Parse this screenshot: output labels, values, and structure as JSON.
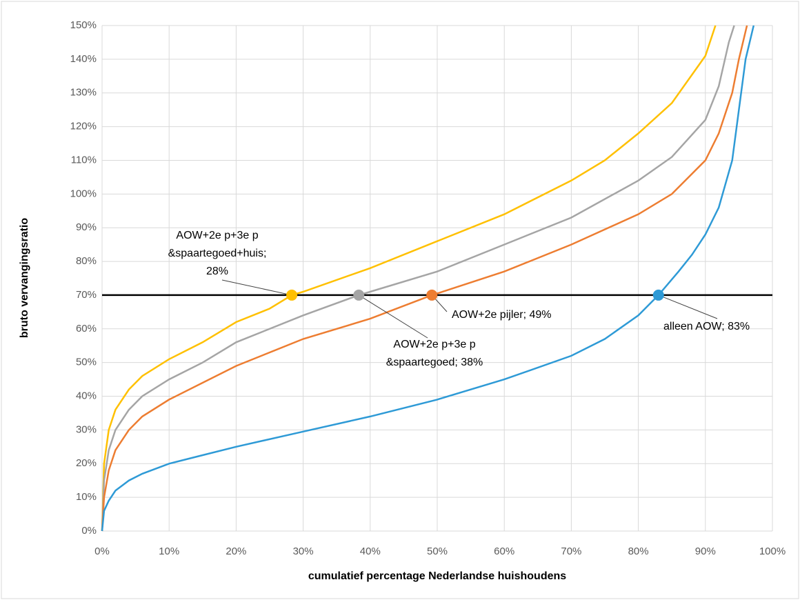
{
  "chart_data": {
    "type": "line",
    "x_label": "cumulatief percentage Nederlandse huishoudens",
    "y_label": "bruto vervangingsratio",
    "xlim": [
      0,
      100
    ],
    "ylim": [
      0,
      150
    ],
    "xticks": [
      {
        "value": 0,
        "label": "0%"
      },
      {
        "value": 10,
        "label": "10%"
      },
      {
        "value": 20,
        "label": "20%"
      },
      {
        "value": 30,
        "label": "30%"
      },
      {
        "value": 40,
        "label": "40%"
      },
      {
        "value": 50,
        "label": "50%"
      },
      {
        "value": 60,
        "label": "60%"
      },
      {
        "value": 70,
        "label": "70%"
      },
      {
        "value": 80,
        "label": "80%"
      },
      {
        "value": 90,
        "label": "90%"
      },
      {
        "value": 100,
        "label": "100%"
      }
    ],
    "yticks": [
      {
        "value": 0,
        "label": "0%"
      },
      {
        "value": 10,
        "label": "10%"
      },
      {
        "value": 20,
        "label": "20%"
      },
      {
        "value": 30,
        "label": "30%"
      },
      {
        "value": 40,
        "label": "40%"
      },
      {
        "value": 50,
        "label": "50%"
      },
      {
        "value": 60,
        "label": "60%"
      },
      {
        "value": 70,
        "label": "70%"
      },
      {
        "value": 80,
        "label": "80%"
      },
      {
        "value": 90,
        "label": "90%"
      },
      {
        "value": 100,
        "label": "100%"
      },
      {
        "value": 110,
        "label": "110%"
      },
      {
        "value": 120,
        "label": "120%"
      },
      {
        "value": 130,
        "label": "130%"
      },
      {
        "value": 140,
        "label": "140%"
      },
      {
        "value": 150,
        "label": "150%"
      }
    ],
    "grid": true,
    "reference_line": {
      "y": 70,
      "color": "#000000"
    },
    "series": [
      {
        "color": "#ffc000",
        "x": [
          0,
          0.3,
          1,
          2,
          4,
          6,
          10,
          15,
          20,
          25,
          28.3,
          30,
          40,
          50,
          60,
          70,
          75,
          80,
          85,
          90,
          91.5
        ],
        "values": [
          0,
          20,
          30,
          36,
          42,
          46,
          51,
          56,
          62,
          66,
          70,
          71,
          78,
          86,
          94,
          104,
          110,
          118,
          127,
          141,
          150
        ]
      },
      {
        "color": "#a5a5a5",
        "x": [
          0,
          0.3,
          1,
          2,
          4,
          6,
          10,
          15,
          20,
          30,
          38.3,
          40,
          50,
          60,
          70,
          80,
          85,
          90,
          92,
          93.5,
          94.3
        ],
        "values": [
          0,
          15,
          24,
          30,
          36,
          40,
          45,
          50,
          56,
          64,
          70,
          71,
          77,
          85,
          93,
          104,
          111,
          122,
          132,
          145,
          150
        ]
      },
      {
        "color": "#ed7d31",
        "x": [
          0,
          0.3,
          1,
          2,
          4,
          6,
          10,
          15,
          20,
          30,
          40,
          49.2,
          50,
          60,
          70,
          80,
          85,
          90,
          92,
          94,
          95,
          96.2
        ],
        "values": [
          0,
          10,
          18,
          24,
          30,
          34,
          39,
          44,
          49,
          57,
          63,
          70,
          70.5,
          77,
          85,
          94,
          100,
          110,
          118,
          130,
          140,
          150
        ]
      },
      {
        "color": "#2e9ad6",
        "x": [
          0,
          0.3,
          1,
          2,
          4,
          6,
          10,
          15,
          20,
          30,
          40,
          50,
          60,
          70,
          75,
          80,
          83,
          86,
          88,
          90,
          92,
          94,
          95,
          96,
          97.2
        ],
        "values": [
          0,
          6,
          9,
          12,
          15,
          17,
          20,
          22.5,
          25,
          29.5,
          34,
          39,
          45,
          52,
          57,
          64,
          70,
          77,
          82,
          88,
          96,
          110,
          125,
          140,
          150
        ]
      }
    ],
    "annotations": [
      {
        "lines": [
          "AOW+2e p+3e p",
          "&spaartegoed+huis;",
          "28%"
        ],
        "x": 28.3,
        "y": 70,
        "color": "#ffc000"
      },
      {
        "lines": [
          "AOW+2e p+3e p",
          "&spaartegoed; 38%"
        ],
        "x": 38.3,
        "y": 70,
        "color": "#a5a5a5"
      },
      {
        "lines": [
          "AOW+2e pijler; 49%"
        ],
        "x": 49.2,
        "y": 70,
        "color": "#ed7d31"
      },
      {
        "lines": [
          "alleen AOW; 83%"
        ],
        "x": 83,
        "y": 70,
        "color": "#2e9ad6"
      }
    ]
  }
}
